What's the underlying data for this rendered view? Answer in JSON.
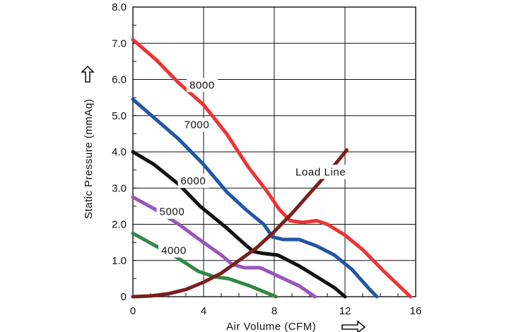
{
  "chart_data": {
    "type": "line",
    "title": "",
    "xlabel": "Air Volume (CFM)",
    "ylabel": "Static Pressure (mmAq)",
    "xlim": [
      0,
      16
    ],
    "ylim": [
      0,
      8
    ],
    "grid": true,
    "x_ticks": [
      {
        "value": 0,
        "label": "0"
      },
      {
        "value": 4,
        "label": "4"
      },
      {
        "value": 8,
        "label": "8"
      },
      {
        "value": 12,
        "label": "12"
      },
      {
        "value": 16,
        "label": "16"
      }
    ],
    "y_ticks": [
      {
        "value": 0,
        "label": "0"
      },
      {
        "value": 1,
        "label": "1.0"
      },
      {
        "value": 2,
        "label": "2.0"
      },
      {
        "value": 3,
        "label": "3.0"
      },
      {
        "value": 4,
        "label": "4.0"
      },
      {
        "value": 5,
        "label": "5.0"
      },
      {
        "value": 6,
        "label": "6.0"
      },
      {
        "value": 7,
        "label": "7.0"
      },
      {
        "value": 8,
        "label": "8.0"
      }
    ],
    "series": [
      {
        "name": "8000",
        "color": "#ee3333",
        "label_at": [
          3.2,
          5.75
        ],
        "points": [
          [
            0,
            7.1
          ],
          [
            1.3,
            6.55
          ],
          [
            2.6,
            5.9
          ],
          [
            4,
            5.3
          ],
          [
            5.3,
            4.5
          ],
          [
            6.5,
            3.6
          ],
          [
            7.6,
            2.9
          ],
          [
            8.3,
            2.4
          ],
          [
            8.9,
            2.1
          ],
          [
            9.6,
            2.05
          ],
          [
            10.4,
            2.1
          ],
          [
            11,
            2.0
          ],
          [
            12,
            1.7
          ],
          [
            13,
            1.3
          ],
          [
            14.2,
            0.7
          ],
          [
            15.7,
            0.0
          ]
        ]
      },
      {
        "name": "7000",
        "color": "#2255a4",
        "label_at": [
          2.9,
          4.65
        ],
        "points": [
          [
            0,
            5.45
          ],
          [
            1.3,
            4.9
          ],
          [
            2.6,
            4.35
          ],
          [
            4,
            3.65
          ],
          [
            5.3,
            2.9
          ],
          [
            6.4,
            2.4
          ],
          [
            7.4,
            2.0
          ],
          [
            7.9,
            1.65
          ],
          [
            8.5,
            1.58
          ],
          [
            9.4,
            1.58
          ],
          [
            10.4,
            1.4
          ],
          [
            11.4,
            1.15
          ],
          [
            12.4,
            0.75
          ],
          [
            13.4,
            0.2
          ],
          [
            13.8,
            0.0
          ]
        ]
      },
      {
        "name": "6000",
        "color": "#111111",
        "label_at": [
          2.7,
          3.1
        ],
        "points": [
          [
            0,
            4.0
          ],
          [
            1.2,
            3.65
          ],
          [
            2.6,
            3.1
          ],
          [
            3.8,
            2.5
          ],
          [
            5.3,
            1.9
          ],
          [
            6.1,
            1.55
          ],
          [
            6.8,
            1.25
          ],
          [
            7.3,
            1.2
          ],
          [
            8.2,
            1.15
          ],
          [
            9.4,
            0.85
          ],
          [
            10.4,
            0.55
          ],
          [
            11.4,
            0.25
          ],
          [
            12.0,
            0.0
          ]
        ]
      },
      {
        "name": "5000",
        "color": "#9955bb",
        "label_at": [
          1.5,
          2.25
        ],
        "points": [
          [
            0,
            2.75
          ],
          [
            1.3,
            2.4
          ],
          [
            2.6,
            2.0
          ],
          [
            3.7,
            1.6
          ],
          [
            5.0,
            1.15
          ],
          [
            5.6,
            0.9
          ],
          [
            6.3,
            0.8
          ],
          [
            7.2,
            0.8
          ],
          [
            8.3,
            0.55
          ],
          [
            9.4,
            0.3
          ],
          [
            10.3,
            0.0
          ]
        ]
      },
      {
        "name": "4000",
        "color": "#338844",
        "label_at": [
          1.6,
          1.18
        ],
        "points": [
          [
            0,
            1.75
          ],
          [
            1.3,
            1.4
          ],
          [
            2.6,
            1.05
          ],
          [
            3.7,
            0.7
          ],
          [
            4.6,
            0.55
          ],
          [
            5.4,
            0.5
          ],
          [
            6.6,
            0.3
          ],
          [
            7.6,
            0.1
          ],
          [
            8.1,
            0.0
          ]
        ]
      },
      {
        "name": "Load Line",
        "color": "#7b1e1e",
        "label_at": [
          9.2,
          3.35
        ],
        "points": [
          [
            0,
            0.0
          ],
          [
            1,
            0.02
          ],
          [
            2,
            0.08
          ],
          [
            3,
            0.2
          ],
          [
            4,
            0.4
          ],
          [
            5,
            0.65
          ],
          [
            6,
            1.0
          ],
          [
            7,
            1.35
          ],
          [
            8,
            1.8
          ],
          [
            9,
            2.3
          ],
          [
            10,
            2.85
          ],
          [
            11,
            3.4
          ],
          [
            11.6,
            3.75
          ],
          [
            12.1,
            4.05
          ]
        ]
      }
    ]
  }
}
